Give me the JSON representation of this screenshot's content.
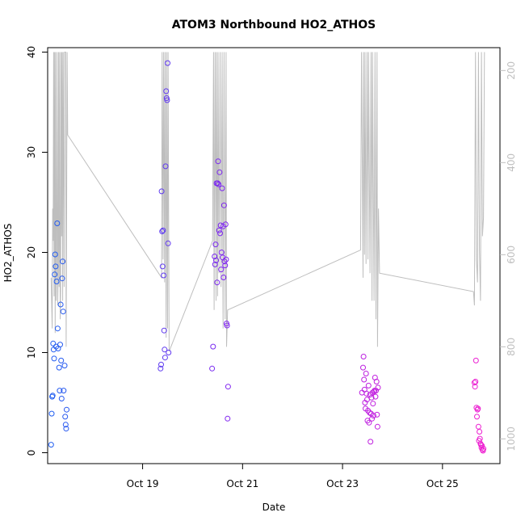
{
  "chart_data": {
    "type": "scatter",
    "title": "ATOM3 Northbound HO2_ATHOS",
    "xlabel": "Date",
    "ylabel": "HO2_ATHOS",
    "ylim": [
      0,
      40
    ],
    "xlim_days": [
      17.1,
      26.15
    ],
    "x_ticks": [
      {
        "day": 19,
        "label": "Oct 19"
      },
      {
        "day": 21,
        "label": "Oct 21"
      },
      {
        "day": 23,
        "label": "Oct 23"
      },
      {
        "day": 25,
        "label": "Oct 25"
      }
    ],
    "y_ticks": [
      0,
      10,
      20,
      30,
      40
    ],
    "y2_ticks": [
      200,
      400,
      600,
      800,
      1000
    ],
    "y2_range": [
      1030,
      160
    ],
    "colors": {
      "axis": "#000000",
      "secondary_line": "#bebebe",
      "secondary_axis": "#bfbfbf",
      "points_start": "#1f5ff0",
      "points_mid": "#8b1ff0",
      "points_end": "#f01fd0"
    },
    "points": [
      [
        17.17,
        0.8
      ],
      [
        17.18,
        3.9
      ],
      [
        17.19,
        5.6
      ],
      [
        17.2,
        5.7
      ],
      [
        17.21,
        10.9
      ],
      [
        17.22,
        10.3
      ],
      [
        17.23,
        9.4
      ],
      [
        17.24,
        17.8
      ],
      [
        17.25,
        19.8
      ],
      [
        17.26,
        18.6
      ],
      [
        17.27,
        10.6
      ],
      [
        17.28,
        17.1
      ],
      [
        17.29,
        22.9
      ],
      [
        17.3,
        12.4
      ],
      [
        17.31,
        10.4
      ],
      [
        17.33,
        8.5
      ],
      [
        17.34,
        6.2
      ],
      [
        17.35,
        10.8
      ],
      [
        17.36,
        14.8
      ],
      [
        17.37,
        9.2
      ],
      [
        17.38,
        5.4
      ],
      [
        17.39,
        17.4
      ],
      [
        17.4,
        19.1
      ],
      [
        17.41,
        14.1
      ],
      [
        17.42,
        6.2
      ],
      [
        17.44,
        8.7
      ],
      [
        17.45,
        3.6
      ],
      [
        17.46,
        2.8
      ],
      [
        17.47,
        2.4
      ],
      [
        17.48,
        4.3
      ],
      [
        19.36,
        8.4
      ],
      [
        19.37,
        8.8
      ],
      [
        19.38,
        26.1
      ],
      [
        19.39,
        22.1
      ],
      [
        19.4,
        18.6
      ],
      [
        19.41,
        22.2
      ],
      [
        19.42,
        17.7
      ],
      [
        19.43,
        12.2
      ],
      [
        19.44,
        10.3
      ],
      [
        19.45,
        9.5
      ],
      [
        19.46,
        28.6
      ],
      [
        19.47,
        36.1
      ],
      [
        19.48,
        35.4
      ],
      [
        19.49,
        35.2
      ],
      [
        19.5,
        38.9
      ],
      [
        19.51,
        20.9
      ],
      [
        19.52,
        10.0
      ],
      [
        20.39,
        8.4
      ],
      [
        20.41,
        10.6
      ],
      [
        20.44,
        19.6
      ],
      [
        20.45,
        18.8
      ],
      [
        20.46,
        20.8
      ],
      [
        20.47,
        19.2
      ],
      [
        20.48,
        26.9
      ],
      [
        20.49,
        17.0
      ],
      [
        20.5,
        26.9
      ],
      [
        20.51,
        29.1
      ],
      [
        20.52,
        26.8
      ],
      [
        20.53,
        22.2
      ],
      [
        20.54,
        28.0
      ],
      [
        20.55,
        21.9
      ],
      [
        20.56,
        22.7
      ],
      [
        20.57,
        18.3
      ],
      [
        20.58,
        20.0
      ],
      [
        20.59,
        26.4
      ],
      [
        20.6,
        19.5
      ],
      [
        20.61,
        22.6
      ],
      [
        20.62,
        17.5
      ],
      [
        20.63,
        24.7
      ],
      [
        20.64,
        19.1
      ],
      [
        20.65,
        18.7
      ],
      [
        20.66,
        22.8
      ],
      [
        20.67,
        19.3
      ],
      [
        20.68,
        12.9
      ],
      [
        20.69,
        12.7
      ],
      [
        20.7,
        3.4
      ],
      [
        20.71,
        6.6
      ],
      [
        23.39,
        6.0
      ],
      [
        23.41,
        8.5
      ],
      [
        23.42,
        9.6
      ],
      [
        23.43,
        7.3
      ],
      [
        23.44,
        6.3
      ],
      [
        23.45,
        5.0
      ],
      [
        23.46,
        4.4
      ],
      [
        23.47,
        7.9
      ],
      [
        23.48,
        5.9
      ],
      [
        23.49,
        5.3
      ],
      [
        23.5,
        3.2
      ],
      [
        23.51,
        4.2
      ],
      [
        23.52,
        6.7
      ],
      [
        23.53,
        3.0
      ],
      [
        23.54,
        4.0
      ],
      [
        23.55,
        5.8
      ],
      [
        23.56,
        1.1
      ],
      [
        23.57,
        3.9
      ],
      [
        23.58,
        5.5
      ],
      [
        23.59,
        3.4
      ],
      [
        23.6,
        6.0
      ],
      [
        23.61,
        4.9
      ],
      [
        23.62,
        3.7
      ],
      [
        23.63,
        6.1
      ],
      [
        23.64,
        6.2
      ],
      [
        23.65,
        7.5
      ],
      [
        23.66,
        5.6
      ],
      [
        23.67,
        6.2
      ],
      [
        23.68,
        7.1
      ],
      [
        23.69,
        3.8
      ],
      [
        23.7,
        2.6
      ],
      [
        23.71,
        6.5
      ],
      [
        25.64,
        7.0
      ],
      [
        25.65,
        6.6
      ],
      [
        25.66,
        7.1
      ],
      [
        25.67,
        9.2
      ],
      [
        25.68,
        4.5
      ],
      [
        25.69,
        3.6
      ],
      [
        25.7,
        4.3
      ],
      [
        25.71,
        4.4
      ],
      [
        25.72,
        2.6
      ],
      [
        25.73,
        1.2
      ],
      [
        25.74,
        2.1
      ],
      [
        25.75,
        1.4
      ],
      [
        25.76,
        0.9
      ],
      [
        25.77,
        0.8
      ],
      [
        25.78,
        0.5
      ],
      [
        25.79,
        0.7
      ],
      [
        25.8,
        0.3
      ],
      [
        25.81,
        0.2
      ],
      [
        25.82,
        0.4
      ]
    ],
    "secondary_line": [
      [
        17.17,
        650
      ],
      [
        17.19,
        760
      ],
      [
        17.2,
        500
      ],
      [
        17.21,
        570
      ],
      [
        17.22,
        160
      ],
      [
        17.23,
        690
      ],
      [
        17.24,
        160
      ],
      [
        17.25,
        770
      ],
      [
        17.26,
        160
      ],
      [
        17.27,
        700
      ],
      [
        17.28,
        600
      ],
      [
        17.29,
        160
      ],
      [
        17.3,
        710
      ],
      [
        17.31,
        640
      ],
      [
        17.32,
        160
      ],
      [
        17.33,
        670
      ],
      [
        17.34,
        160
      ],
      [
        17.35,
        740
      ],
      [
        17.36,
        680
      ],
      [
        17.37,
        160
      ],
      [
        17.38,
        560
      ],
      [
        17.39,
        160
      ],
      [
        17.4,
        700
      ],
      [
        17.41,
        160
      ],
      [
        17.43,
        670
      ],
      [
        17.44,
        160
      ],
      [
        17.46,
        160
      ],
      [
        17.47,
        800
      ],
      [
        17.48,
        500
      ],
      [
        17.49,
        160
      ],
      [
        17.5,
        340
      ],
      [
        19.38,
        650
      ],
      [
        19.39,
        160
      ],
      [
        19.41,
        610
      ],
      [
        19.42,
        160
      ],
      [
        19.44,
        660
      ],
      [
        19.45,
        160
      ],
      [
        19.47,
        780
      ],
      [
        19.48,
        160
      ],
      [
        19.5,
        760
      ],
      [
        19.51,
        160
      ],
      [
        19.53,
        810
      ],
      [
        20.4,
        570
      ],
      [
        20.42,
        160
      ],
      [
        20.43,
        720
      ],
      [
        20.45,
        160
      ],
      [
        20.47,
        700
      ],
      [
        20.48,
        160
      ],
      [
        20.5,
        690
      ],
      [
        20.51,
        160
      ],
      [
        20.53,
        640
      ],
      [
        20.55,
        160
      ],
      [
        20.57,
        670
      ],
      [
        20.59,
        160
      ],
      [
        20.61,
        760
      ],
      [
        20.63,
        160
      ],
      [
        20.65,
        740
      ],
      [
        20.67,
        160
      ],
      [
        20.68,
        800
      ],
      [
        20.7,
        720
      ],
      [
        23.36,
        590
      ],
      [
        23.38,
        160
      ],
      [
        23.41,
        650
      ],
      [
        23.42,
        160
      ],
      [
        23.44,
        600
      ],
      [
        23.45,
        160
      ],
      [
        23.47,
        620
      ],
      [
        23.49,
        160
      ],
      [
        23.51,
        610
      ],
      [
        23.52,
        160
      ],
      [
        23.55,
        640
      ],
      [
        23.57,
        160
      ],
      [
        23.59,
        700
      ],
      [
        23.6,
        160
      ],
      [
        23.63,
        700
      ],
      [
        23.65,
        160
      ],
      [
        23.67,
        740
      ],
      [
        23.69,
        160
      ],
      [
        23.7,
        800
      ],
      [
        23.72,
        500
      ],
      [
        23.74,
        640
      ],
      [
        25.62,
        680
      ],
      [
        25.64,
        710
      ],
      [
        25.66,
        160
      ],
      [
        25.68,
        610
      ],
      [
        25.7,
        660
      ],
      [
        25.72,
        160
      ],
      [
        25.74,
        590
      ],
      [
        25.76,
        700
      ],
      [
        25.78,
        160
      ],
      [
        25.8,
        560
      ],
      [
        25.82,
        520
      ],
      [
        25.84,
        160
      ]
    ]
  }
}
